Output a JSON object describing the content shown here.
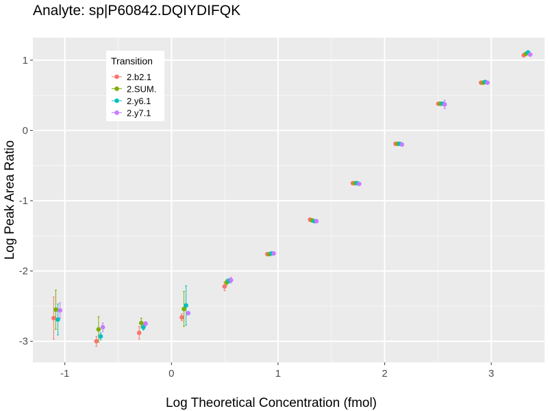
{
  "colors": {
    "panel_bg": "#EBEBEB",
    "grid_major": "#FFFFFF",
    "grid_minor": "#F5F5F5",
    "tick": "#333333"
  },
  "chart_data": {
    "type": "scatter",
    "title": "Analyte: sp|P60842.DQIYDIFQK",
    "xlabel": "Log Theoretical Concentration (fmol)",
    "ylabel": "Log Peak Area Ratio",
    "xlim": [
      -1.3,
      3.5
    ],
    "ylim": [
      -3.3,
      1.32
    ],
    "x_ticks": [
      -1,
      0,
      1,
      2,
      3
    ],
    "y_ticks": [
      -3,
      -2,
      -1,
      0,
      1
    ],
    "x_tick_labels": [
      "-1",
      "0",
      "1",
      "2",
      "3"
    ],
    "y_tick_labels": [
      "-3",
      "-2",
      "-1",
      "0",
      "1"
    ],
    "grid": true,
    "legend": {
      "title": "Transition",
      "position": "top-left"
    },
    "x": [
      -1.075,
      -0.674,
      -0.273,
      0.127,
      0.528,
      0.929,
      1.33,
      1.731,
      2.132,
      2.533,
      2.934,
      3.335
    ],
    "series": [
      {
        "name": "2.b2.1",
        "color": "#F8766D",
        "offset": -0.03,
        "y": [
          -2.67,
          -3.0,
          -2.88,
          -2.66,
          -2.22,
          -1.76,
          -1.27,
          -0.75,
          -0.19,
          0.38,
          0.68,
          1.07
        ],
        "err": [
          0.3,
          0.07,
          0.09,
          0.05,
          0.06,
          0.02,
          0.02,
          0.02,
          0.02,
          0.02,
          0.02,
          0.02
        ]
      },
      {
        "name": "2.SUM.",
        "color": "#7CAE00",
        "offset": -0.01,
        "y": [
          -2.55,
          -2.83,
          -2.74,
          -2.54,
          -2.16,
          -1.76,
          -1.28,
          -0.75,
          -0.19,
          0.38,
          0.68,
          1.09
        ],
        "err": [
          0.28,
          0.18,
          0.07,
          0.25,
          0.04,
          0.02,
          0.02,
          0.02,
          0.02,
          0.02,
          0.02,
          0.02
        ]
      },
      {
        "name": "2.y6.1",
        "color": "#00BFC4",
        "offset": 0.01,
        "y": [
          -2.69,
          -2.93,
          -2.8,
          -2.49,
          -2.14,
          -1.75,
          -1.29,
          -0.75,
          -0.19,
          0.38,
          0.69,
          1.11
        ],
        "err": [
          0.22,
          0.05,
          0.04,
          0.28,
          0.03,
          0.02,
          0.02,
          0.02,
          0.02,
          0.02,
          0.02,
          0.02
        ]
      },
      {
        "name": "2.y7.1",
        "color": "#C77CFF",
        "offset": 0.03,
        "y": [
          -2.56,
          -2.8,
          -2.75,
          -2.6,
          -2.13,
          -1.75,
          -1.29,
          -0.76,
          -0.2,
          0.37,
          0.68,
          1.08
        ],
        "err": [
          0.11,
          0.06,
          0.03,
          0.02,
          0.04,
          0.02,
          0.02,
          0.02,
          0.02,
          0.06,
          0.02,
          0.02
        ]
      }
    ]
  }
}
